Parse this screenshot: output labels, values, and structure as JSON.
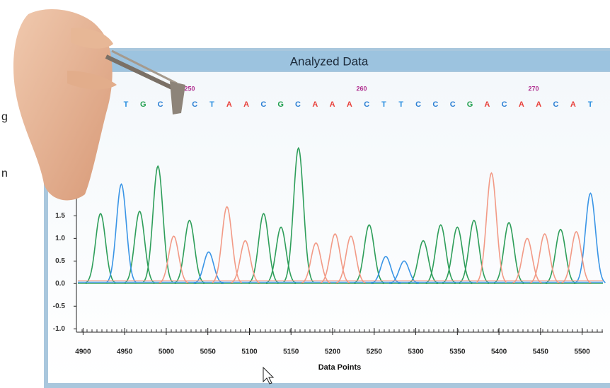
{
  "edge_text": [
    "g",
    "n"
  ],
  "chart_data": {
    "type": "trace",
    "title": "Analyzed Data",
    "xlabel": "Data Points",
    "xlim": [
      4892,
      5525
    ],
    "ylim": [
      -1.2,
      4.4
    ],
    "xticks": [
      4900,
      4950,
      5000,
      5050,
      5100,
      5150,
      5200,
      5250,
      5300,
      5350,
      5400,
      5450,
      5500
    ],
    "yticks": [
      {
        "value": -1,
        "label": "-1.0"
      },
      -0.5,
      {
        "value": 0,
        "label": "0.0"
      },
      0.5,
      {
        "value": 1,
        "label": "1.0"
      },
      1.5
    ],
    "base_calls": [
      "T",
      "G",
      "C",
      null,
      "C",
      "T",
      "A",
      "A",
      "C",
      "G",
      "C",
      "A",
      "A",
      "A",
      "C",
      "T",
      "T",
      "C",
      "C",
      "C",
      "G",
      "A",
      "C",
      "A",
      "A",
      "C",
      "A",
      "T"
    ],
    "base_colors": {
      "A": "#e8403a",
      "C": "#2a7fd4",
      "G": "#22a050",
      "T": "#2a8fe0"
    },
    "position_labels": [
      250,
      260,
      270
    ],
    "series": [
      {
        "color": "#2e9e5a",
        "x": [
          4921,
          4968,
          4990,
          5028,
          5117,
          5138,
          5159,
          5244,
          5309,
          5330,
          5350,
          5370,
          5412,
          5474
        ],
        "values": [
          1.55,
          1.6,
          2.6,
          1.4,
          1.55,
          1.25,
          3.0,
          1.3,
          0.95,
          1.3,
          1.25,
          1.4,
          1.35,
          1.2
        ]
      },
      {
        "color": "#3a95e6",
        "x": [
          4946,
          5051,
          5264,
          5286,
          5510
        ],
        "values": [
          2.2,
          0.7,
          0.6,
          0.5,
          2.0
        ]
      },
      {
        "color": "#f29a86",
        "x": [
          5009,
          5073,
          5095,
          5180,
          5203,
          5222,
          5391,
          5434,
          5455,
          5493
        ],
        "values": [
          1.05,
          1.7,
          0.95,
          0.9,
          1.1,
          1.05,
          2.45,
          1.0,
          1.1,
          1.15
        ]
      }
    ]
  }
}
